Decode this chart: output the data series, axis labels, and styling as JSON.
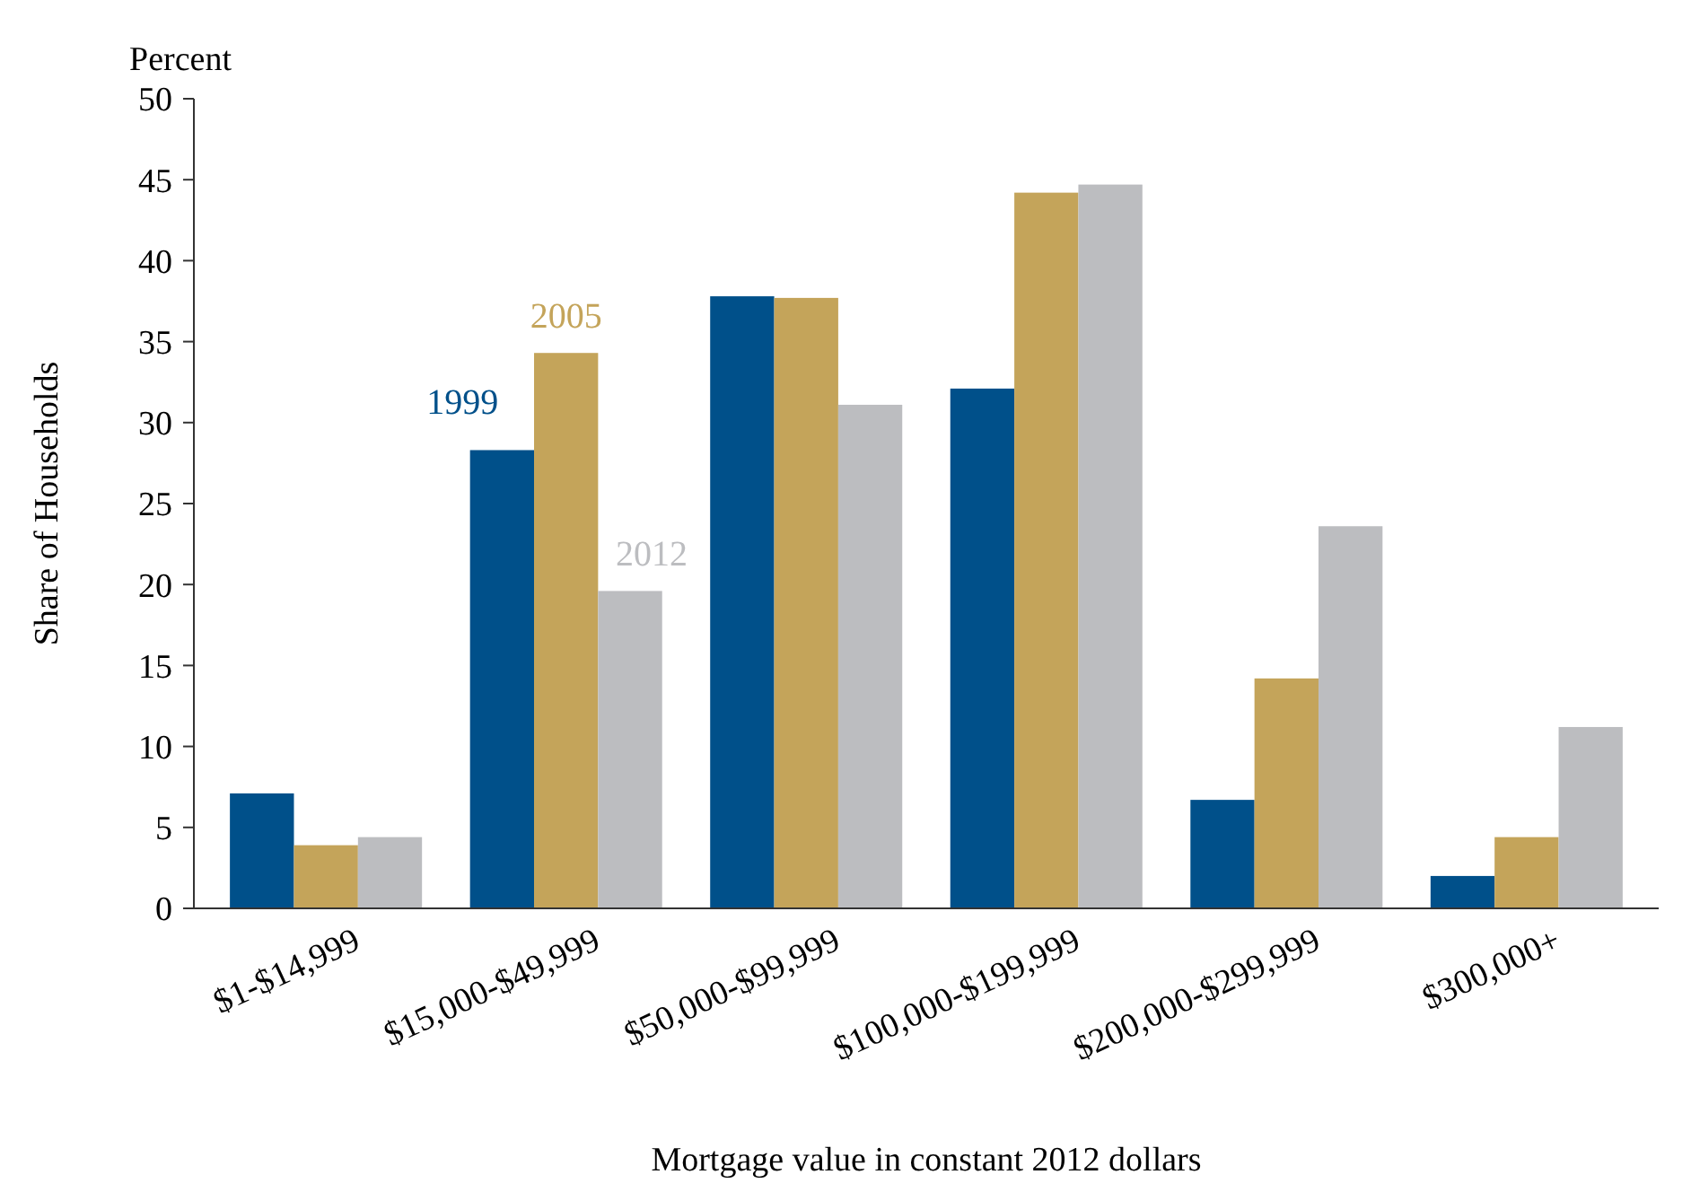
{
  "chart_data": {
    "type": "bar",
    "ylabel": "Share of Households",
    "xlabel": "Mortgage value in constant 2012 dollars",
    "annotations": [
      "Percent"
    ],
    "categories": [
      "$1-$14,999",
      "$15,000-$49,999",
      "$50,000-$99,999",
      "$100,000-$199,999",
      "$200,000-$299,999",
      "$300,000+"
    ],
    "series": [
      {
        "name": "1999",
        "color": "#00508a",
        "values": [
          7.1,
          28.3,
          37.8,
          32.1,
          6.7,
          2.0
        ]
      },
      {
        "name": "2005",
        "color": "#c4a45a",
        "values": [
          3.9,
          34.3,
          37.7,
          44.2,
          14.2,
          4.4
        ]
      },
      {
        "name": "2012",
        "color": "#bcbdc0",
        "values": [
          4.4,
          19.6,
          31.1,
          44.7,
          23.6,
          11.2
        ]
      }
    ],
    "ylim": [
      0,
      50
    ],
    "yticks": [
      0,
      5,
      10,
      15,
      20,
      25,
      30,
      35,
      40,
      45,
      50
    ],
    "grid": false,
    "legend": false
  }
}
